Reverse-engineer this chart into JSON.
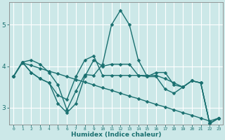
{
  "xlabel": "Humidex (Indice chaleur)",
  "background_color": "#cce8e8",
  "grid_color": "#ffffff",
  "line_color": "#1a7070",
  "xlim": [
    -0.5,
    23.5
  ],
  "ylim": [
    2.6,
    5.55
  ],
  "yticks": [
    3,
    4,
    5
  ],
  "xticks": [
    0,
    1,
    2,
    3,
    4,
    5,
    6,
    7,
    8,
    9,
    10,
    11,
    12,
    13,
    14,
    15,
    16,
    17,
    18,
    19,
    20,
    21,
    22,
    23
  ],
  "line1_y": [
    3.75,
    4.1,
    4.15,
    4.05,
    3.85,
    3.55,
    2.95,
    3.4,
    3.8,
    3.78,
    4.05,
    5.0,
    5.35,
    5.0,
    4.15,
    3.75,
    3.85,
    3.85,
    3.55,
    3.5,
    3.65,
    3.6,
    2.62,
    2.75
  ],
  "line2_y": [
    3.75,
    4.1,
    3.85,
    3.7,
    3.6,
    3.3,
    3.2,
    3.75,
    4.15,
    4.25,
    3.78,
    3.78,
    3.78,
    3.78,
    3.78,
    3.78,
    3.78,
    3.7,
    3.6,
    3.5,
    3.65,
    3.6,
    2.62,
    2.75
  ],
  "line3_y": [
    3.75,
    4.1,
    3.85,
    3.7,
    3.6,
    3.1,
    2.88,
    3.1,
    3.75,
    4.15,
    4.0,
    4.05,
    4.05,
    4.05,
    3.78,
    3.75,
    3.75,
    3.45,
    3.35,
    3.5,
    3.65,
    3.6,
    2.62,
    2.75
  ],
  "line4_y": [
    3.75,
    4.08,
    4.02,
    3.95,
    3.88,
    3.82,
    3.75,
    3.68,
    3.62,
    3.55,
    3.48,
    3.42,
    3.35,
    3.28,
    3.22,
    3.15,
    3.08,
    3.02,
    2.95,
    2.88,
    2.82,
    2.75,
    2.68,
    2.75
  ],
  "marker": "D",
  "marker_size": 2.5,
  "line_width": 1.0
}
